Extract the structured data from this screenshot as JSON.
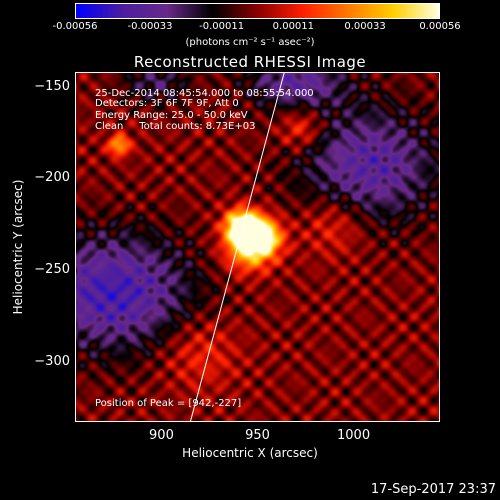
{
  "colorbar": {
    "ticks": [
      "-0.00056",
      "-0.00033",
      "-0.00011",
      "0.00011",
      "0.00033",
      "0.00056"
    ],
    "tick_values": [
      -0.00056,
      -0.00033,
      -0.00011,
      0.00011,
      0.00033,
      0.00056
    ],
    "units": "(photons cm⁻² s⁻¹ asec⁻²)",
    "colors": [
      "#0000ff",
      "#4b1ea0",
      "#6a2a8a",
      "#000000",
      "#8b0000",
      "#ff2000",
      "#ff7a00",
      "#ffd000",
      "#ffffe0"
    ]
  },
  "chart_data": {
    "type": "heatmap",
    "title": "Reconstructed RHESSI Image",
    "xlabel": "Heliocentric X (arcsec)",
    "ylabel": "Heliocentric Y (arcsec)",
    "xlim": [
      855,
      1045
    ],
    "ylim": [
      -333,
      -142
    ],
    "xticks": [
      900,
      950,
      1000
    ],
    "yticks": [
      -150,
      -200,
      -250,
      -300
    ],
    "annotations": {
      "time": "25-Dec-2014 08:45:54.000 to 08:55:54.000",
      "detectors": "Detectors: 3F 6F 7F 9F, Att 0",
      "energy": "Energy Range: 25.0 - 50.0 keV",
      "clean": "Clean     Total counts: 8.73E+03",
      "peak": "Position of Peak = [942,-227]"
    },
    "peak": [
      942,
      -227
    ],
    "limb_line": [
      [
        915,
        -333
      ],
      [
        964,
        -142
      ]
    ],
    "sources": [
      {
        "x": 942,
        "y": -226,
        "amp": 1.0,
        "sigma": 6
      },
      {
        "x": 952,
        "y": -232,
        "amp": 0.9,
        "sigma": 7
      },
      {
        "x": 945,
        "y": -238,
        "amp": 0.6,
        "sigma": 9
      },
      {
        "x": 878,
        "y": -182,
        "amp": 0.55,
        "sigma": 4
      },
      {
        "x": 973,
        "y": -173,
        "amp": 0.3,
        "sigma": 8
      },
      {
        "x": 990,
        "y": -225,
        "amp": 0.25,
        "sigma": 12
      },
      {
        "x": 920,
        "y": -295,
        "amp": 0.22,
        "sigma": 14
      }
    ],
    "negative_regions": [
      {
        "x": 875,
        "y": -262,
        "amp": 0.6,
        "sigma_x": 28,
        "sigma_y": 22
      },
      {
        "x": 1008,
        "y": -193,
        "amp": 0.5,
        "sigma_x": 25,
        "sigma_y": 22
      },
      {
        "x": 970,
        "y": -148,
        "amp": 0.45,
        "sigma_x": 18,
        "sigma_y": 10
      },
      {
        "x": 897,
        "y": -148,
        "amp": 0.3,
        "sigma_x": 12,
        "sigma_y": 8
      }
    ]
  },
  "timestamp": "17-Sep-2017 23:37"
}
